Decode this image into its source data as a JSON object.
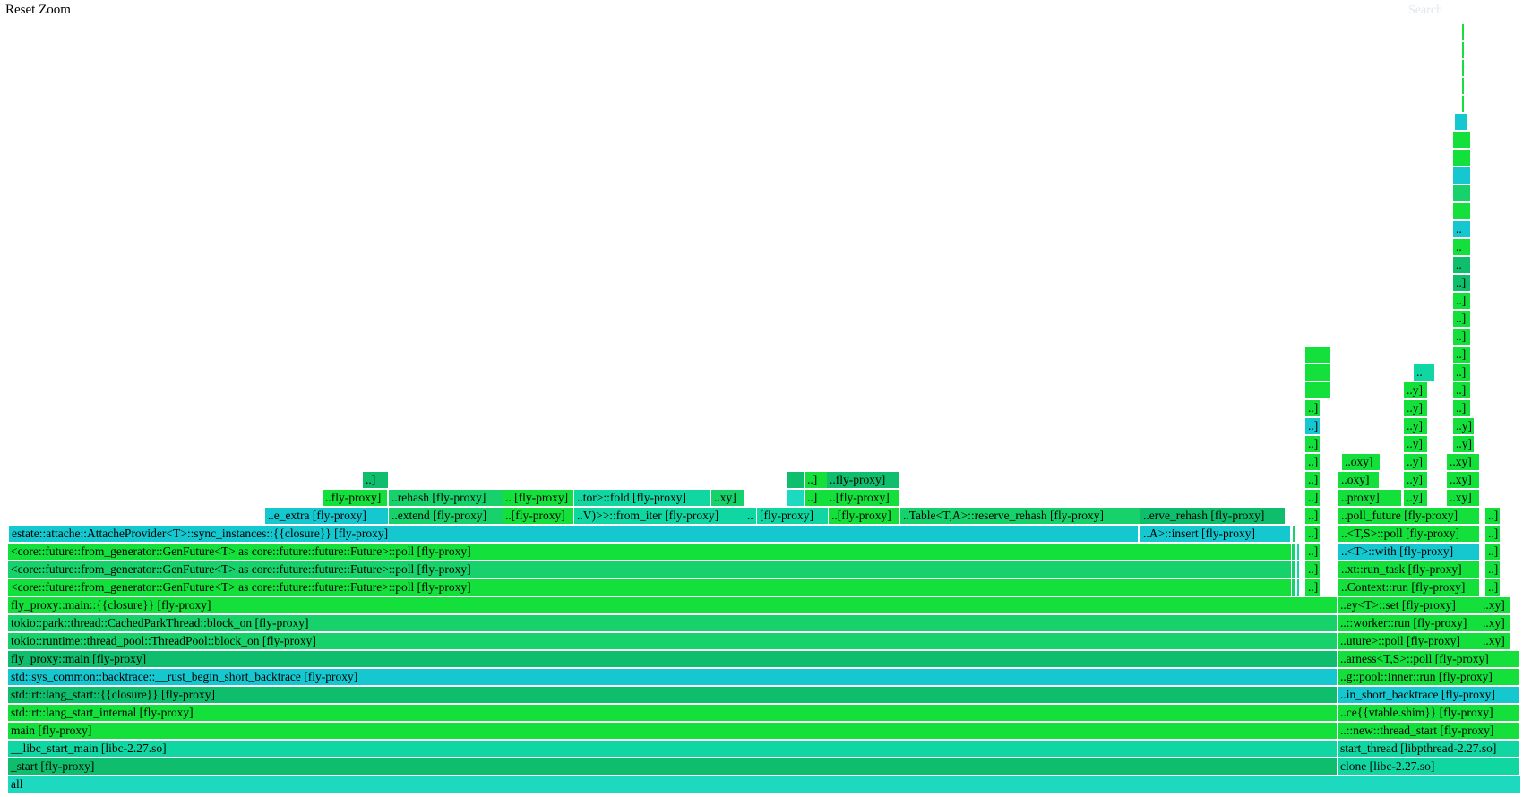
{
  "controls": {
    "reset_zoom": "Reset Zoom",
    "search": "Search"
  },
  "colors": {
    "bright_green": "#14e03c",
    "green": "#17d26a",
    "teal": "#10d7a2",
    "cyan": "#15c7cf",
    "emerald": "#0fbe6d",
    "light_cyan": "#1cd9c0"
  },
  "frames": [
    {
      "label": "all",
      "depth": 0,
      "x": 0.005,
      "w": 0.9935,
      "c": "light_cyan"
    },
    {
      "label": "_start [fly-proxy]",
      "depth": 1,
      "x": 0.005,
      "w": 0.873,
      "c": "emerald"
    },
    {
      "label": "clone [libc-2.27.so]",
      "depth": 1,
      "x": 0.878,
      "w": 0.12,
      "c": "teal"
    },
    {
      "label": "__libc_start_main [libc-2.27.so]",
      "depth": 2,
      "x": 0.005,
      "w": 0.873,
      "c": "teal"
    },
    {
      "label": "start_thread [libpthread-2.27.so]",
      "depth": 2,
      "x": 0.878,
      "w": 0.12,
      "c": "teal"
    },
    {
      "label": "main [fly-proxy]",
      "depth": 3,
      "x": 0.005,
      "w": 0.873,
      "c": "bright_green"
    },
    {
      "label": "..::new::thread_start [fly-proxy]",
      "depth": 3,
      "x": 0.878,
      "w": 0.12,
      "c": "bright_green"
    },
    {
      "label": "std::rt::lang_start_internal [fly-proxy]",
      "depth": 4,
      "x": 0.005,
      "w": 0.873,
      "c": "bright_green"
    },
    {
      "label": "..ce{{vtable.shim}} [fly-proxy]",
      "depth": 4,
      "x": 0.878,
      "w": 0.12,
      "c": "bright_green"
    },
    {
      "label": "std::rt::lang_start::{{closure}} [fly-proxy]",
      "depth": 5,
      "x": 0.005,
      "w": 0.873,
      "c": "emerald"
    },
    {
      "label": "..in_short_backtrace [fly-proxy]",
      "depth": 5,
      "x": 0.878,
      "w": 0.12,
      "c": "cyan"
    },
    {
      "label": "std::sys_common::backtrace::__rust_begin_short_backtrace [fly-proxy]",
      "depth": 6,
      "x": 0.005,
      "w": 0.873,
      "c": "cyan"
    },
    {
      "label": "..g::pool::Inner::run [fly-proxy]",
      "depth": 6,
      "x": 0.878,
      "w": 0.12,
      "c": "bright_green"
    },
    {
      "label": "fly_proxy::main [fly-proxy]",
      "depth": 7,
      "x": 0.005,
      "w": 0.873,
      "c": "emerald"
    },
    {
      "label": "..arness<T,S>::poll [fly-proxy]",
      "depth": 7,
      "x": 0.878,
      "w": 0.12,
      "c": "bright_green"
    },
    {
      "label": "tokio::runtime::thread_pool::ThreadPool::block_on [fly-proxy]",
      "depth": 8,
      "x": 0.005,
      "w": 0.873,
      "c": "green"
    },
    {
      "label": "..uture>::poll [fly-proxy]",
      "depth": 8,
      "x": 0.878,
      "w": 0.094,
      "c": "bright_green"
    },
    {
      "label": "..xy]",
      "depth": 8,
      "x": 0.972,
      "w": 0.02,
      "c": "bright_green"
    },
    {
      "label": "tokio::park::thread::CachedParkThread::block_on [fly-proxy]",
      "depth": 9,
      "x": 0.005,
      "w": 0.873,
      "c": "green"
    },
    {
      "label": "..::worker::run [fly-proxy]",
      "depth": 9,
      "x": 0.878,
      "w": 0.094,
      "c": "bright_green"
    },
    {
      "label": "..xy]",
      "depth": 9,
      "x": 0.972,
      "w": 0.02,
      "c": "bright_green"
    },
    {
      "label": "fly_proxy::main::{{closure}} [fly-proxy]",
      "depth": 10,
      "x": 0.005,
      "w": 0.873,
      "c": "bright_green"
    },
    {
      "label": "..ey<T>::set [fly-proxy]",
      "depth": 10,
      "x": 0.878,
      "w": 0.094,
      "c": "bright_green"
    },
    {
      "label": "..xy]",
      "depth": 10,
      "x": 0.972,
      "w": 0.02,
      "c": "bright_green"
    },
    {
      "label": "<core::future::from_generator::GenFuture<T> as core::future::future::Future>::poll [fly-proxy]",
      "depth": 11,
      "x": 0.005,
      "w": 0.843,
      "c": "bright_green"
    },
    {
      "label": "",
      "depth": 11,
      "x": 0.848,
      "w": 0.003,
      "c": "green"
    },
    {
      "label": "",
      "depth": 11,
      "x": 0.852,
      "w": 0.002,
      "c": "teal"
    },
    {
      "label": "..]",
      "depth": 11,
      "x": 0.857,
      "w": 0.01,
      "c": "bright_green"
    },
    {
      "label": "..Context::run [fly-proxy]",
      "depth": 11,
      "x": 0.879,
      "w": 0.093,
      "c": "bright_green"
    },
    {
      "label": "..]",
      "depth": 11,
      "x": 0.975,
      "w": 0.01,
      "c": "bright_green"
    },
    {
      "label": "<core::future::from_generator::GenFuture<T> as core::future::future::Future>::poll [fly-proxy]",
      "depth": 12,
      "x": 0.005,
      "w": 0.843,
      "c": "green"
    },
    {
      "label": "",
      "depth": 12,
      "x": 0.848,
      "w": 0.003,
      "c": "green"
    },
    {
      "label": "",
      "depth": 12,
      "x": 0.852,
      "w": 0.002,
      "c": "teal"
    },
    {
      "label": "..]",
      "depth": 12,
      "x": 0.857,
      "w": 0.01,
      "c": "bright_green"
    },
    {
      "label": "..xt::run_task [fly-proxy]",
      "depth": 12,
      "x": 0.879,
      "w": 0.093,
      "c": "bright_green"
    },
    {
      "label": "..]",
      "depth": 12,
      "x": 0.975,
      "w": 0.01,
      "c": "bright_green"
    },
    {
      "label": "<core::future::from_generator::GenFuture<T> as core::future::future::Future>::poll [fly-proxy]",
      "depth": 13,
      "x": 0.005,
      "w": 0.843,
      "c": "bright_green"
    },
    {
      "label": "",
      "depth": 13,
      "x": 0.848,
      "w": 0.003,
      "c": "green"
    },
    {
      "label": "",
      "depth": 13,
      "x": 0.852,
      "w": 0.002,
      "c": "teal"
    },
    {
      "label": "..]",
      "depth": 13,
      "x": 0.857,
      "w": 0.01,
      "c": "bright_green"
    },
    {
      "label": "..<T>::with [fly-proxy]",
      "depth": 13,
      "x": 0.879,
      "w": 0.093,
      "c": "cyan"
    },
    {
      "label": "..]",
      "depth": 13,
      "x": 0.975,
      "w": 0.01,
      "c": "bright_green"
    },
    {
      "label": "estate::attache::AttacheProvider<T>::sync_instances::{{closure}} [fly-proxy]",
      "depth": 14,
      "x": 0.006,
      "w": 0.742,
      "c": "cyan"
    },
    {
      "label": "..A>::insert [fly-proxy]",
      "depth": 14,
      "x": 0.749,
      "w": 0.099,
      "c": "cyan"
    },
    {
      "label": "",
      "depth": 14,
      "x": 0.849,
      "w": 0.002,
      "c": "green"
    },
    {
      "label": "..]",
      "depth": 14,
      "x": 0.857,
      "w": 0.01,
      "c": "bright_green"
    },
    {
      "label": "..<T,S>::poll [fly-proxy]",
      "depth": 14,
      "x": 0.879,
      "w": 0.093,
      "c": "bright_green"
    },
    {
      "label": "..]",
      "depth": 14,
      "x": 0.975,
      "w": 0.01,
      "c": "bright_green"
    },
    {
      "label": "..e_extra [fly-proxy]",
      "depth": 15,
      "x": 0.174,
      "w": 0.081,
      "c": "cyan"
    },
    {
      "label": "..extend [fly-proxy]",
      "depth": 15,
      "x": 0.255,
      "w": 0.075,
      "c": "green"
    },
    {
      "label": "..[fly-proxy]",
      "depth": 15,
      "x": 0.33,
      "w": 0.047,
      "c": "bright_green"
    },
    {
      "label": "..V)>>::from_iter [fly-proxy]",
      "depth": 15,
      "x": 0.377,
      "w": 0.112,
      "c": "teal"
    },
    {
      "label": "..",
      "depth": 15,
      "x": 0.489,
      "w": 0.008,
      "c": "teal"
    },
    {
      "label": "[fly-proxy]",
      "depth": 15,
      "x": 0.497,
      "w": 0.047,
      "c": "teal"
    },
    {
      "label": "..[fly-proxy]",
      "depth": 15,
      "x": 0.544,
      "w": 0.047,
      "c": "bright_green"
    },
    {
      "label": "..Table<T,A>::reserve_rehash [fly-proxy]",
      "depth": 15,
      "x": 0.591,
      "w": 0.158,
      "c": "green"
    },
    {
      "label": "..erve_rehash [fly-proxy]",
      "depth": 15,
      "x": 0.749,
      "w": 0.095,
      "c": "emerald"
    },
    {
      "label": "..]",
      "depth": 15,
      "x": 0.857,
      "w": 0.01,
      "c": "bright_green"
    },
    {
      "label": "..poll_future [fly-proxy]",
      "depth": 15,
      "x": 0.879,
      "w": 0.093,
      "c": "bright_green"
    },
    {
      "label": "..]",
      "depth": 15,
      "x": 0.975,
      "w": 0.01,
      "c": "bright_green"
    },
    {
      "label": "..fly-proxy]",
      "depth": 16,
      "x": 0.212,
      "w": 0.043,
      "c": "bright_green"
    },
    {
      "label": "..rehash [fly-proxy]",
      "depth": 16,
      "x": 0.255,
      "w": 0.075,
      "c": "green"
    },
    {
      "label": ".. [fly-proxy]",
      "depth": 16,
      "x": 0.33,
      "w": 0.047,
      "c": "bright_green"
    },
    {
      "label": "..tor>::fold [fly-proxy]",
      "depth": 16,
      "x": 0.377,
      "w": 0.09,
      "c": "teal"
    },
    {
      "label": "..xy]",
      "depth": 16,
      "x": 0.467,
      "w": 0.022,
      "c": "green"
    },
    {
      "label": "",
      "depth": 16,
      "x": 0.517,
      "w": 0.011,
      "c": "light_cyan"
    },
    {
      "label": "..]",
      "depth": 16,
      "x": 0.528,
      "w": 0.015,
      "c": "bright_green"
    },
    {
      "label": "..[fly-proxy]",
      "depth": 16,
      "x": 0.543,
      "w": 0.048,
      "c": "bright_green"
    },
    {
      "label": "..]",
      "depth": 16,
      "x": 0.857,
      "w": 0.01,
      "c": "bright_green"
    },
    {
      "label": "..proxy]",
      "depth": 16,
      "x": 0.879,
      "w": 0.042,
      "c": "bright_green"
    },
    {
      "label": "..y]",
      "depth": 16,
      "x": 0.922,
      "w": 0.016,
      "c": "bright_green"
    },
    {
      "label": "..xy]",
      "depth": 16,
      "x": 0.95,
      "w": 0.022,
      "c": "bright_green"
    },
    {
      "label": "..]",
      "depth": 17,
      "x": 0.238,
      "w": 0.017,
      "c": "emerald"
    },
    {
      "label": "",
      "depth": 17,
      "x": 0.517,
      "w": 0.011,
      "c": "emerald"
    },
    {
      "label": "..]",
      "depth": 17,
      "x": 0.528,
      "w": 0.015,
      "c": "bright_green"
    },
    {
      "label": "..fly-proxy]",
      "depth": 17,
      "x": 0.543,
      "w": 0.048,
      "c": "emerald"
    },
    {
      "label": "..]",
      "depth": 17,
      "x": 0.857,
      "w": 0.01,
      "c": "bright_green"
    },
    {
      "label": "..oxy]",
      "depth": 17,
      "x": 0.879,
      "w": 0.027,
      "c": "bright_green"
    },
    {
      "label": "..y]",
      "depth": 17,
      "x": 0.922,
      "w": 0.016,
      "c": "bright_green"
    },
    {
      "label": "..xy]",
      "depth": 17,
      "x": 0.95,
      "w": 0.022,
      "c": "bright_green"
    },
    {
      "label": "..]",
      "depth": 18,
      "x": 0.857,
      "w": 0.01,
      "c": "bright_green"
    },
    {
      "label": "..oxy]",
      "depth": 18,
      "x": 0.881,
      "w": 0.025,
      "c": "bright_green"
    },
    {
      "label": "..y]",
      "depth": 18,
      "x": 0.922,
      "w": 0.016,
      "c": "bright_green"
    },
    {
      "label": "..xy]",
      "depth": 18,
      "x": 0.95,
      "w": 0.022,
      "c": "bright_green"
    },
    {
      "label": "..]",
      "depth": 19,
      "x": 0.857,
      "w": 0.01,
      "c": "bright_green"
    },
    {
      "label": "..y]",
      "depth": 19,
      "x": 0.922,
      "w": 0.016,
      "c": "bright_green"
    },
    {
      "label": "..y]",
      "depth": 19,
      "x": 0.954,
      "w": 0.014,
      "c": "bright_green"
    },
    {
      "label": "..]",
      "depth": 20,
      "x": 0.857,
      "w": 0.01,
      "c": "cyan"
    },
    {
      "label": "..y]",
      "depth": 20,
      "x": 0.922,
      "w": 0.016,
      "c": "bright_green"
    },
    {
      "label": "..y]",
      "depth": 20,
      "x": 0.954,
      "w": 0.014,
      "c": "bright_green"
    },
    {
      "label": "..]",
      "depth": 21,
      "x": 0.857,
      "w": 0.01,
      "c": "bright_green"
    },
    {
      "label": "..y]",
      "depth": 21,
      "x": 0.922,
      "w": 0.016,
      "c": "bright_green"
    },
    {
      "label": "..]",
      "depth": 21,
      "x": 0.954,
      "w": 0.012,
      "c": "bright_green"
    },
    {
      "label": "",
      "depth": 22,
      "x": 0.857,
      "w": 0.017,
      "c": "bright_green"
    },
    {
      "label": "..y]",
      "depth": 22,
      "x": 0.922,
      "w": 0.016,
      "c": "bright_green"
    },
    {
      "label": "..]",
      "depth": 22,
      "x": 0.954,
      "w": 0.012,
      "c": "bright_green"
    },
    {
      "label": "",
      "depth": 23,
      "x": 0.857,
      "w": 0.017,
      "c": "bright_green"
    },
    {
      "label": "..",
      "depth": 23,
      "x": 0.928,
      "w": 0.014,
      "c": "teal"
    },
    {
      "label": "..]",
      "depth": 23,
      "x": 0.954,
      "w": 0.012,
      "c": "bright_green"
    },
    {
      "label": "",
      "depth": 24,
      "x": 0.857,
      "w": 0.017,
      "c": "bright_green"
    },
    {
      "label": "..]",
      "depth": 24,
      "x": 0.954,
      "w": 0.012,
      "c": "bright_green"
    },
    {
      "label": "..]",
      "depth": 25,
      "x": 0.954,
      "w": 0.012,
      "c": "bright_green"
    },
    {
      "label": "..]",
      "depth": 26,
      "x": 0.954,
      "w": 0.012,
      "c": "bright_green"
    },
    {
      "label": "..]",
      "depth": 27,
      "x": 0.954,
      "w": 0.012,
      "c": "bright_green"
    },
    {
      "label": "..]",
      "depth": 28,
      "x": 0.954,
      "w": 0.012,
      "c": "emerald"
    },
    {
      "label": "..",
      "depth": 29,
      "x": 0.954,
      "w": 0.012,
      "c": "emerald"
    },
    {
      "label": "..",
      "depth": 30,
      "x": 0.954,
      "w": 0.012,
      "c": "bright_green"
    },
    {
      "label": "..",
      "depth": 31,
      "x": 0.954,
      "w": 0.012,
      "c": "cyan"
    },
    {
      "label": "",
      "depth": 32,
      "x": 0.954,
      "w": 0.012,
      "c": "bright_green"
    },
    {
      "label": "",
      "depth": 33,
      "x": 0.954,
      "w": 0.012,
      "c": "green"
    },
    {
      "label": "",
      "depth": 34,
      "x": 0.954,
      "w": 0.012,
      "c": "cyan"
    },
    {
      "label": "",
      "depth": 35,
      "x": 0.954,
      "w": 0.012,
      "c": "bright_green"
    },
    {
      "label": "",
      "depth": 36,
      "x": 0.954,
      "w": 0.012,
      "c": "bright_green"
    },
    {
      "label": "",
      "depth": 37,
      "x": 0.955,
      "w": 0.008,
      "c": "cyan"
    },
    {
      "label": "",
      "depth": 38,
      "x": 0.96,
      "w": 0.002,
      "c": "bright_green"
    },
    {
      "label": "",
      "depth": 39,
      "x": 0.96,
      "w": 0.002,
      "c": "bright_green"
    },
    {
      "label": "",
      "depth": 40,
      "x": 0.96,
      "w": 0.002,
      "c": "bright_green"
    },
    {
      "label": "",
      "depth": 41,
      "x": 0.96,
      "w": 0.002,
      "c": "bright_green"
    },
    {
      "label": "",
      "depth": 42,
      "x": 0.96,
      "w": 0.002,
      "c": "bright_green"
    }
  ]
}
